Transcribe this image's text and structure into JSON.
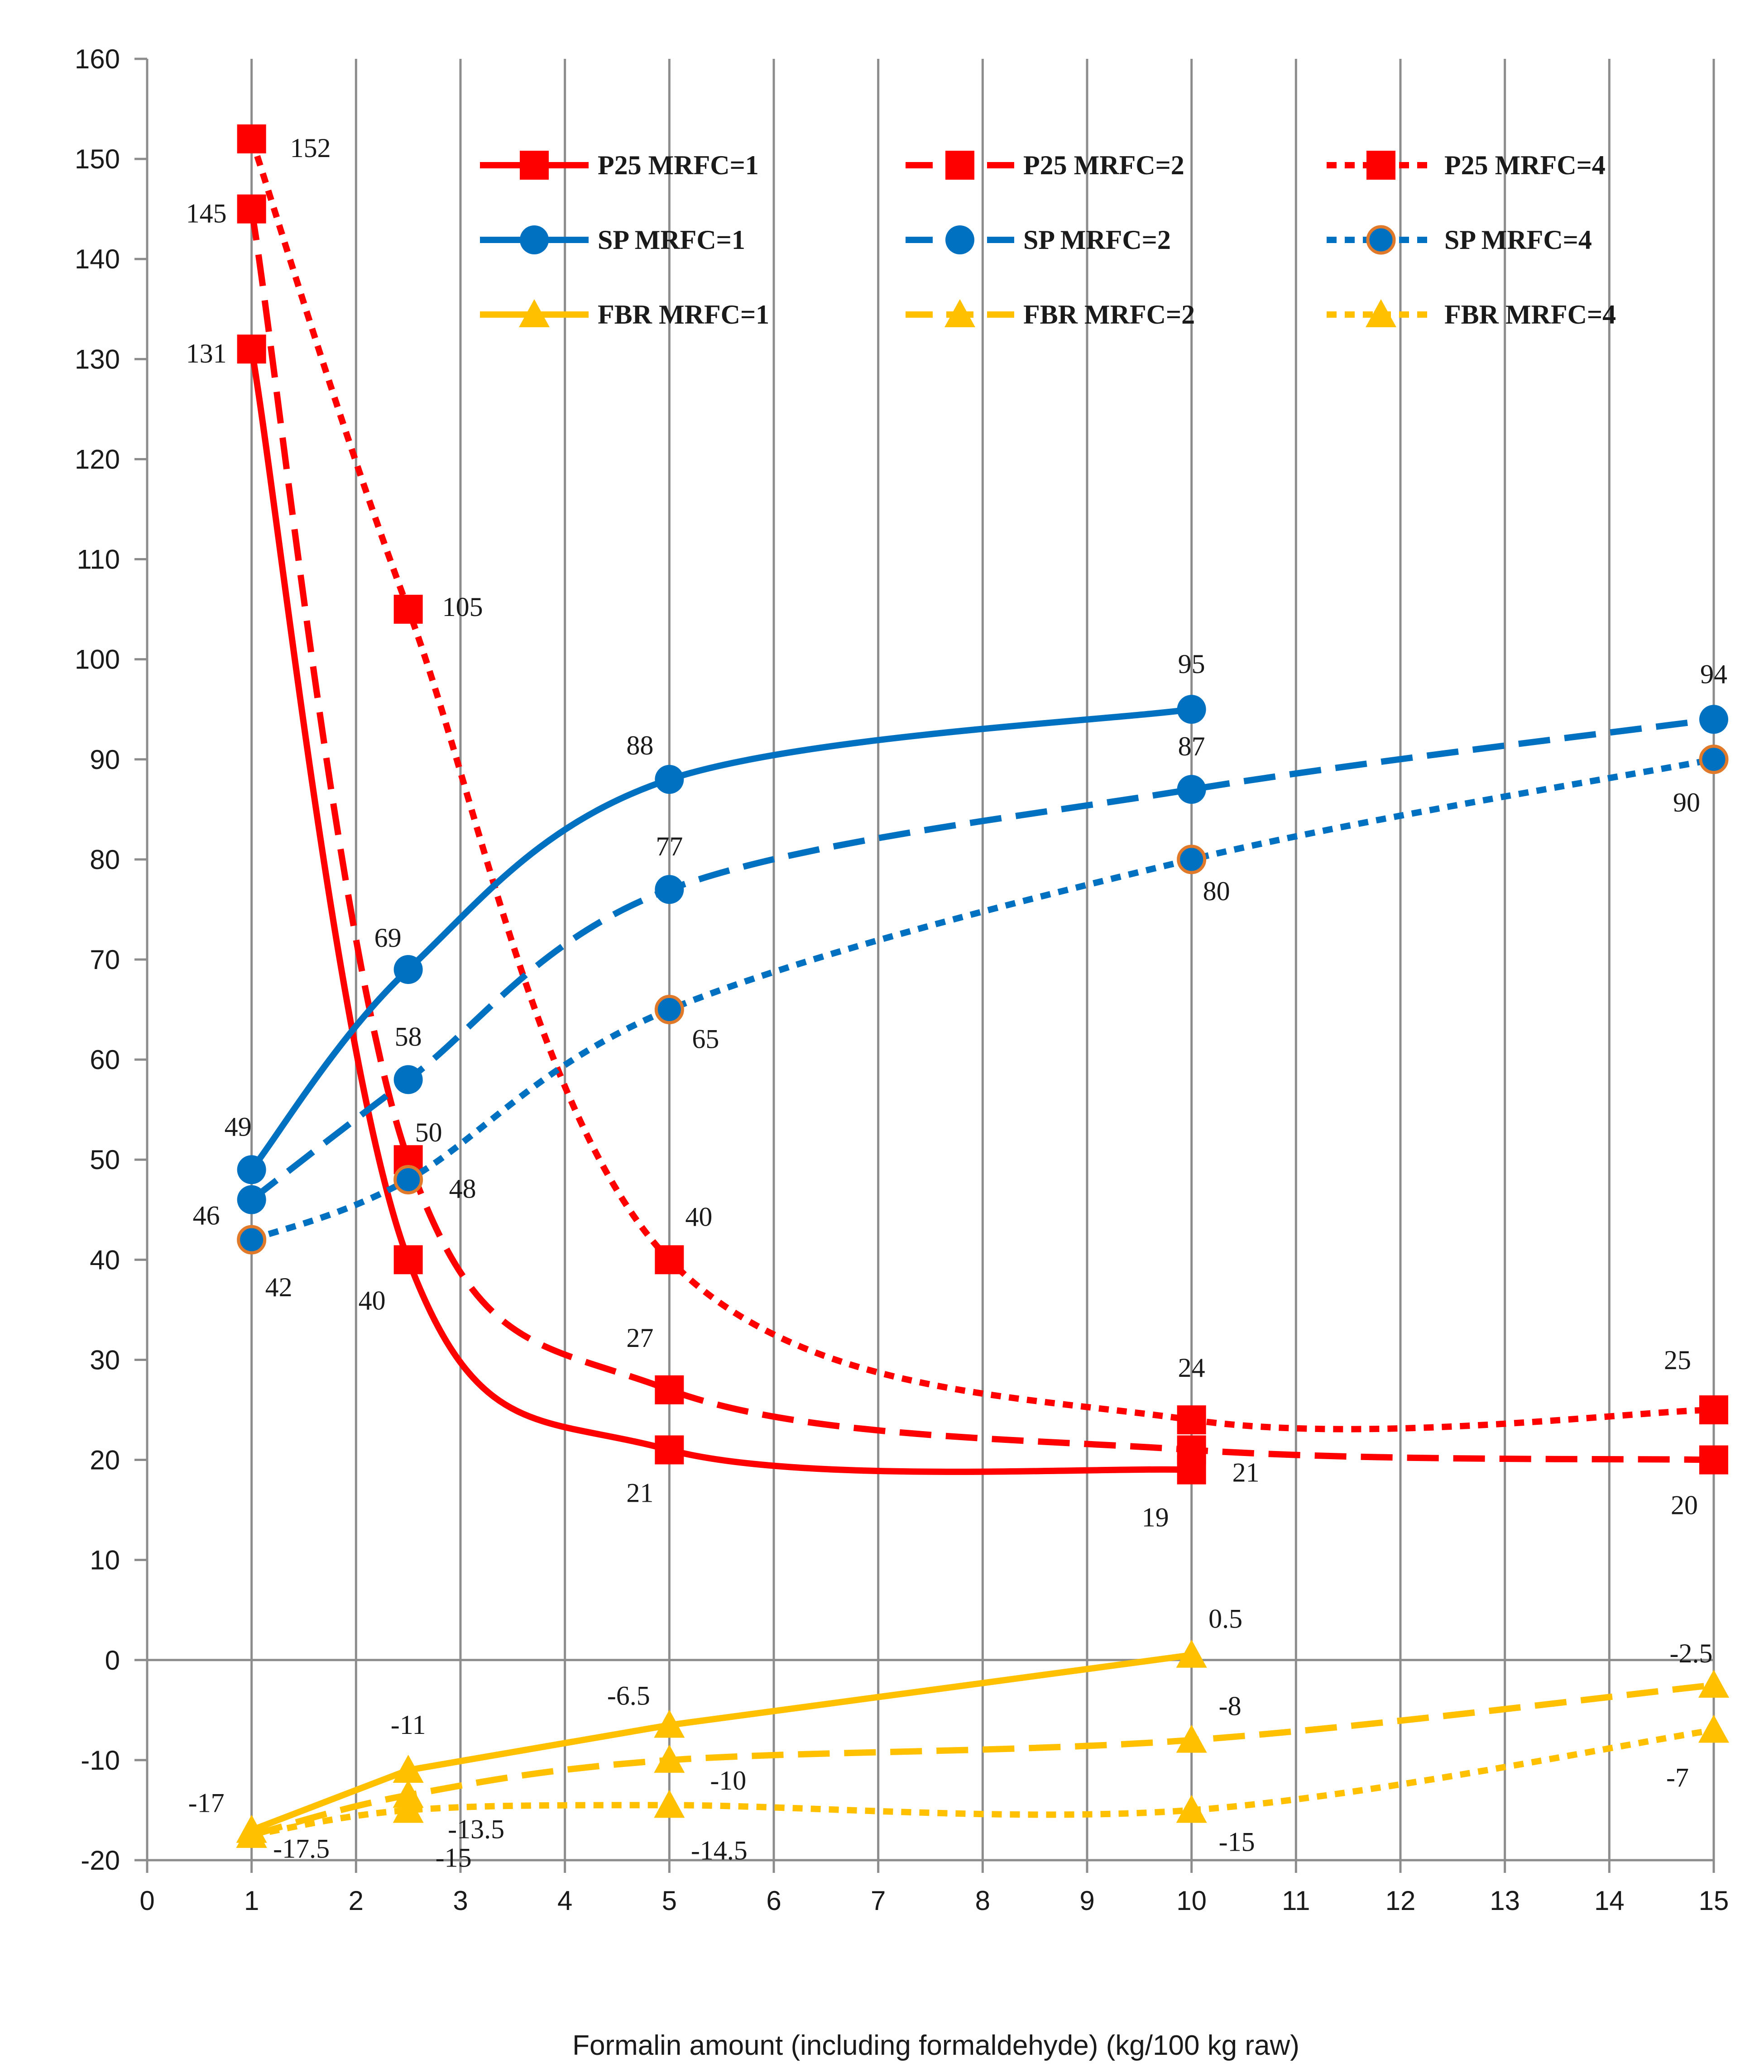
{
  "chart_data": {
    "type": "line",
    "title": "",
    "xlabel": "Formalin amount (including formaldehyde) (kg/100 kg raw)",
    "ylabel": "",
    "xlim": [
      0,
      15
    ],
    "ylim": [
      -20,
      160
    ],
    "x_ticks": [
      "0",
      "1",
      "2",
      "3",
      "4",
      "5",
      "6",
      "7",
      "8",
      "9",
      "10",
      "11",
      "12",
      "13",
      "14",
      "15"
    ],
    "y_ticks": [
      "-20",
      "-10",
      "0",
      "10",
      "20",
      "30",
      "40",
      "50",
      "60",
      "70",
      "80",
      "90",
      "100",
      "110",
      "120",
      "130",
      "140",
      "150",
      "160"
    ],
    "grid": "vertical",
    "legend_position": "top-right",
    "series": [
      {
        "name": "P25 MRFC=1",
        "color": "#ff0000",
        "style": "solid",
        "marker": "square",
        "x": [
          1,
          2.5,
          5,
          10
        ],
        "values": [
          131,
          40,
          21,
          19
        ],
        "labels": [
          "131",
          "40",
          "21",
          "19"
        ]
      },
      {
        "name": "P25 MRFC=2",
        "color": "#ff0000",
        "style": "dash",
        "marker": "square",
        "x": [
          1,
          2.5,
          5,
          10,
          15
        ],
        "values": [
          145,
          50,
          27,
          21,
          20
        ],
        "labels": [
          "145",
          "50",
          "27",
          "21",
          "20"
        ]
      },
      {
        "name": "P25 MRFC=4",
        "color": "#ff0000",
        "style": "dot",
        "marker": "square",
        "x": [
          1,
          2.5,
          5,
          10,
          15
        ],
        "values": [
          152,
          105,
          40,
          24,
          25
        ],
        "labels": [
          "152",
          "105",
          "40",
          "24",
          "25"
        ]
      },
      {
        "name": "SP MRFC=1",
        "color": "#0070c0",
        "style": "solid",
        "marker": "circle",
        "x": [
          1,
          2.5,
          5,
          10
        ],
        "values": [
          49,
          69,
          88,
          95
        ],
        "labels": [
          "49",
          "69",
          "88",
          "95"
        ]
      },
      {
        "name": "SP MRFC=2",
        "color": "#0070c0",
        "style": "dash",
        "marker": "circle",
        "x": [
          1,
          2.5,
          5,
          10,
          15
        ],
        "values": [
          46,
          58,
          77,
          87,
          94
        ],
        "labels": [
          "46",
          "58",
          "77",
          "87",
          "94"
        ]
      },
      {
        "name": "SP MRFC=4",
        "color": "#0070c0",
        "style": "dot",
        "marker": "circle-outlined",
        "x": [
          1,
          2.5,
          5,
          10,
          15
        ],
        "values": [
          42,
          48,
          65,
          80,
          90
        ],
        "labels": [
          "42",
          "48",
          "65",
          "80",
          "90"
        ]
      },
      {
        "name": "FBR MRFC=1",
        "color": "#ffc000",
        "style": "solid",
        "marker": "triangle",
        "x": [
          1,
          2.5,
          5,
          10
        ],
        "values": [
          -17,
          -11,
          -6.5,
          0.5
        ],
        "labels": [
          "-17",
          "-11",
          "-6.5",
          "0.5"
        ]
      },
      {
        "name": "FBR MRFC=2",
        "color": "#ffc000",
        "style": "dash",
        "marker": "triangle",
        "x": [
          1,
          2.5,
          5,
          10,
          15
        ],
        "values": [
          -17.5,
          -13.5,
          -10,
          -8,
          -2.5
        ],
        "labels": [
          "-17.5",
          "-13.5",
          "-10",
          "-8",
          "-2.5"
        ]
      },
      {
        "name": "FBR MRFC=4",
        "color": "#ffc000",
        "style": "dot",
        "marker": "triangle",
        "x": [
          1,
          2.5,
          5,
          10,
          15
        ],
        "values": [
          -17.5,
          -15,
          -14.5,
          -15,
          -7
        ],
        "labels": [
          "",
          "-15",
          "-14.5",
          "-15",
          "-7"
        ]
      }
    ]
  }
}
